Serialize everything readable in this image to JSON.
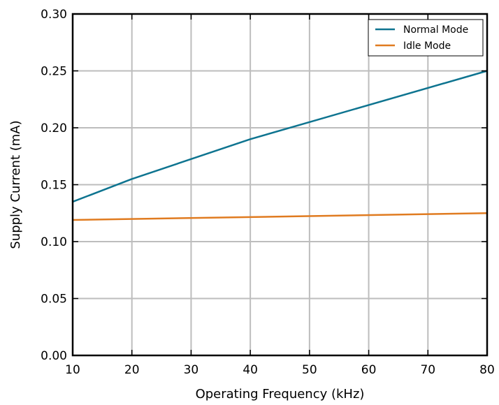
{
  "chart_data": {
    "type": "line",
    "xlabel": "Operating Frequency (kHz)",
    "ylabel": "Supply Current (mA)",
    "xlim": [
      10,
      80
    ],
    "ylim": [
      0.0,
      0.3
    ],
    "x_ticks": [
      "10",
      "20",
      "30",
      "40",
      "50",
      "60",
      "70",
      "80"
    ],
    "y_ticks": [
      "0.00",
      "0.05",
      "0.10",
      "0.15",
      "0.20",
      "0.25",
      "0.30"
    ],
    "grid": true,
    "legend_position": "top-right",
    "series": [
      {
        "name": "Normal Mode",
        "color": "#0e7490",
        "x": [
          10,
          20,
          40,
          80
        ],
        "y": [
          0.135,
          0.155,
          0.19,
          0.25
        ]
      },
      {
        "name": "Idle Mode",
        "color": "#e07b20",
        "x": [
          10,
          80
        ],
        "y": [
          0.119,
          0.125
        ]
      }
    ]
  }
}
